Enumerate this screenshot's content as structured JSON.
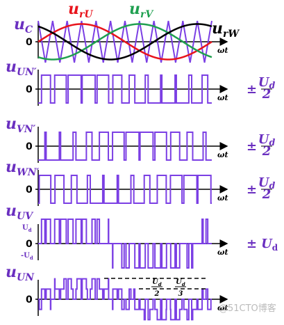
{
  "references": [
    {
      "symbol": "u",
      "subscript": "rU",
      "color": "#e8141c"
    },
    {
      "symbol": "u",
      "subscript": "rV",
      "color": "#20a050"
    },
    {
      "symbol": "u",
      "subscript": "rW",
      "color": "#000000"
    }
  ],
  "panels": [
    {
      "symbol": "u",
      "subscript": "C",
      "zero": "0",
      "axis": "ωt"
    },
    {
      "symbol": "u",
      "subscript": "UN′",
      "zero": "0",
      "axis": "ωt",
      "amplitude": {
        "sign": "±",
        "numerator": "U",
        "numerator_sub": "d",
        "denominator": "2"
      }
    },
    {
      "symbol": "u",
      "subscript": "VN′",
      "zero": "0",
      "axis": "ωt",
      "amplitude": {
        "sign": "±",
        "numerator": "U",
        "numerator_sub": "d",
        "denominator": "2"
      }
    },
    {
      "symbol": "u",
      "subscript": "WN′",
      "zero": "0",
      "axis": "ωt",
      "amplitude": {
        "sign": "±",
        "numerator": "U",
        "numerator_sub": "d",
        "denominator": "2"
      }
    },
    {
      "symbol": "u",
      "subscript": "UV",
      "zero": "0",
      "axis": "ωt",
      "high": {
        "symbol": "U",
        "sub": "d"
      },
      "low": {
        "symbol": "-U",
        "sub": "d"
      },
      "amplitude": {
        "sign": "±",
        "symbol": "U",
        "sub": "d"
      }
    },
    {
      "symbol": "u",
      "subscript": "UN",
      "zero": "0",
      "axis": "ωt",
      "level1": {
        "numerator": "U",
        "numerator_sub": "d",
        "denominator": "2"
      },
      "level2": {
        "numerator": "U",
        "numerator_sub": "d",
        "denominator": "3"
      }
    }
  ],
  "watermark": "@51CTO博客"
}
